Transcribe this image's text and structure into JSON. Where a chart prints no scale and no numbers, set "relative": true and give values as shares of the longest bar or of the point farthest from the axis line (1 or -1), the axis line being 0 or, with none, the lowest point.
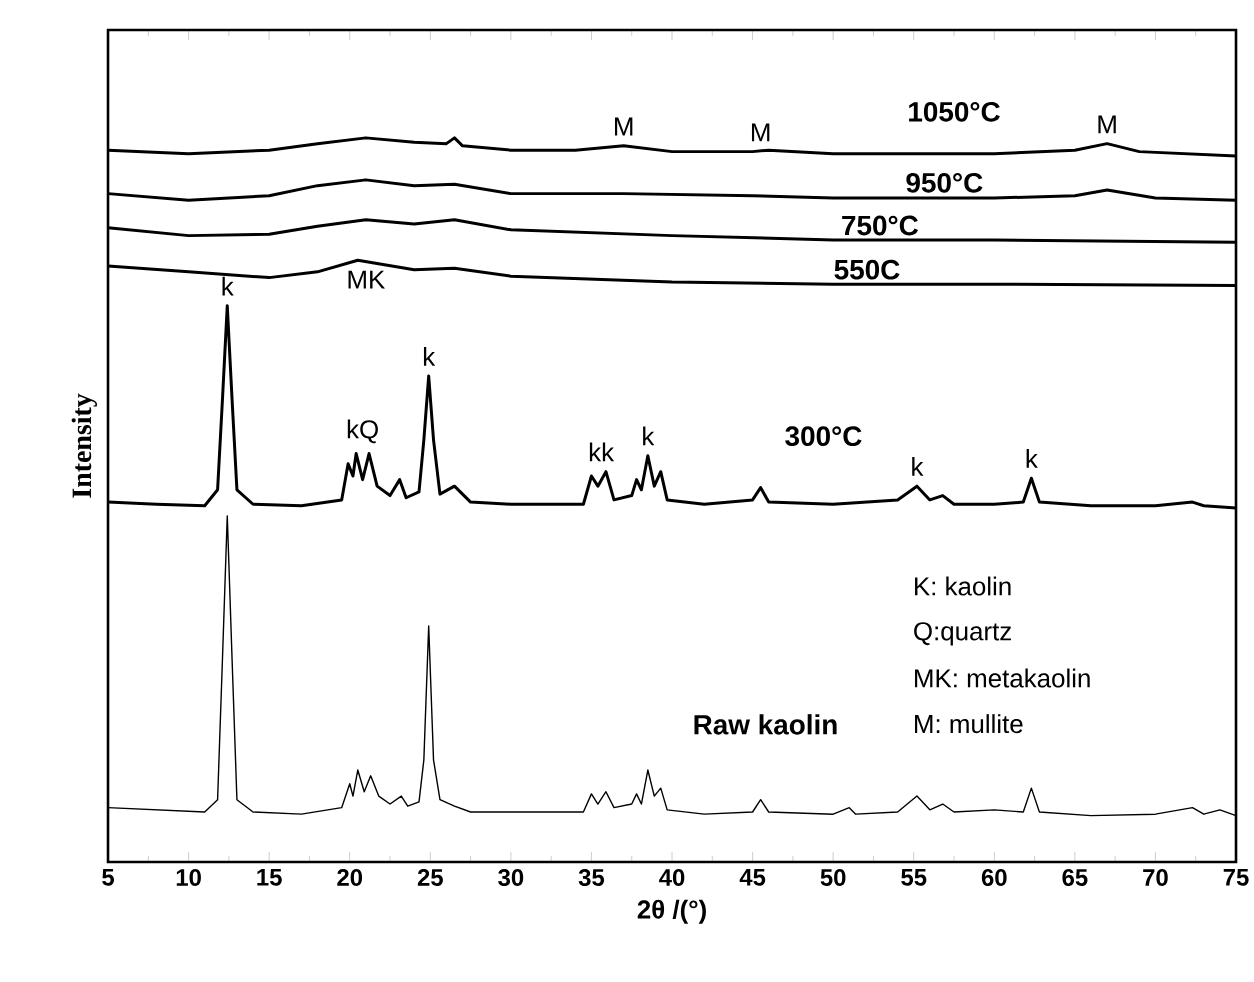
{
  "chart_data": {
    "type": "line",
    "relative": true,
    "xlabel": "2θ /(°)",
    "ylabel": "Intensity",
    "xlim": [
      5,
      75
    ],
    "xticks": [
      5,
      10,
      15,
      20,
      25,
      30,
      35,
      40,
      45,
      50,
      55,
      60,
      65,
      70,
      75
    ],
    "grid": false,
    "marker": "none",
    "line_style": "solid",
    "series": [
      {
        "name": "1050°C",
        "color": "#000000",
        "x": [
          5,
          10,
          15,
          18,
          21,
          24,
          26,
          26.5,
          27,
          30,
          34,
          37,
          40,
          45,
          46,
          50,
          60,
          65,
          67,
          69,
          75
        ],
        "values": [
          0.983,
          0.978,
          0.983,
          0.992,
          1.0,
          0.994,
          0.992,
          1.0,
          0.989,
          0.983,
          0.983,
          0.989,
          0.981,
          0.981,
          0.983,
          0.978,
          0.978,
          0.983,
          0.992,
          0.981,
          0.975
        ]
      },
      {
        "name": "950°C",
        "color": "#000000",
        "x": [
          5,
          10,
          15,
          18,
          21,
          24,
          26.5,
          30,
          37,
          45,
          50,
          60,
          65,
          67,
          70,
          75
        ],
        "values": [
          0.923,
          0.914,
          0.92,
          0.934,
          0.942,
          0.934,
          0.936,
          0.923,
          0.923,
          0.92,
          0.917,
          0.917,
          0.92,
          0.928,
          0.917,
          0.914
        ]
      },
      {
        "name": "750°C",
        "color": "#000000",
        "x": [
          5,
          10,
          15,
          18,
          21,
          24,
          26.5,
          30,
          40,
          50,
          60,
          75
        ],
        "values": [
          0.876,
          0.865,
          0.867,
          0.878,
          0.887,
          0.881,
          0.887,
          0.873,
          0.865,
          0.859,
          0.859,
          0.856
        ]
      },
      {
        "name": "550C",
        "color": "#000000",
        "x": [
          5,
          10,
          15,
          18,
          20.5,
          24,
          26.5,
          30,
          40,
          50,
          60,
          75
        ],
        "values": [
          0.823,
          0.815,
          0.807,
          0.815,
          0.831,
          0.818,
          0.82,
          0.809,
          0.801,
          0.798,
          0.798,
          0.796
        ]
      },
      {
        "name": "300°C",
        "color": "#000000",
        "x": [
          5,
          8,
          11,
          11.8,
          12.1,
          12.4,
          12.7,
          13,
          14,
          17,
          19.5,
          19.9,
          20.2,
          20.4,
          20.8,
          21.2,
          21.7,
          22.5,
          23.1,
          23.5,
          24.3,
          24.6,
          24.9,
          25.2,
          25.6,
          26.5,
          27.5,
          30,
          34.5,
          35,
          35.4,
          35.9,
          36.4,
          37.5,
          37.8,
          38.1,
          38.5,
          38.9,
          39.3,
          39.7,
          42,
          45,
          45.5,
          46,
          50,
          54,
          55.2,
          56,
          56.8,
          57.5,
          60,
          61.8,
          62.3,
          62.8,
          66,
          70,
          72.3,
          73,
          75
        ],
        "values": [
          0.497,
          0.494,
          0.492,
          0.514,
          0.638,
          0.768,
          0.638,
          0.514,
          0.494,
          0.492,
          0.5,
          0.55,
          0.533,
          0.564,
          0.528,
          0.564,
          0.519,
          0.506,
          0.528,
          0.503,
          0.511,
          0.583,
          0.671,
          0.583,
          0.508,
          0.519,
          0.497,
          0.494,
          0.494,
          0.533,
          0.519,
          0.539,
          0.5,
          0.506,
          0.528,
          0.514,
          0.561,
          0.519,
          0.539,
          0.5,
          0.494,
          0.5,
          0.517,
          0.497,
          0.494,
          0.5,
          0.519,
          0.5,
          0.506,
          0.494,
          0.494,
          0.497,
          0.53,
          0.497,
          0.492,
          0.492,
          0.497,
          0.492,
          0.489
        ]
      },
      {
        "name": "Raw kaolin",
        "color": "#000000",
        "x": [
          5,
          8,
          11,
          11.8,
          12.1,
          12.4,
          12.7,
          13,
          14,
          17,
          19.5,
          20,
          20.2,
          20.5,
          20.9,
          21.3,
          21.8,
          22.5,
          23.2,
          23.6,
          24.3,
          24.6,
          24.9,
          25.2,
          25.6,
          26.5,
          27.5,
          30,
          34.5,
          35,
          35.4,
          35.9,
          36.4,
          37.5,
          37.8,
          38.1,
          38.5,
          38.9,
          39.3,
          39.7,
          42,
          45,
          45.5,
          46,
          50,
          51,
          51.4,
          54,
          55.2,
          56,
          56.8,
          57.5,
          60,
          61.8,
          62.3,
          62.8,
          66,
          70,
          72.3,
          73,
          74,
          75
        ],
        "values": [
          0.075,
          0.072,
          0.069,
          0.086,
          0.279,
          0.478,
          0.279,
          0.086,
          0.069,
          0.066,
          0.075,
          0.108,
          0.091,
          0.127,
          0.097,
          0.119,
          0.091,
          0.08,
          0.091,
          0.077,
          0.083,
          0.141,
          0.326,
          0.141,
          0.086,
          0.077,
          0.069,
          0.069,
          0.069,
          0.094,
          0.08,
          0.097,
          0.075,
          0.08,
          0.094,
          0.08,
          0.127,
          0.091,
          0.102,
          0.072,
          0.066,
          0.069,
          0.086,
          0.069,
          0.066,
          0.075,
          0.066,
          0.069,
          0.091,
          0.072,
          0.08,
          0.069,
          0.072,
          0.069,
          0.102,
          0.069,
          0.064,
          0.066,
          0.075,
          0.066,
          0.072,
          0.064
        ]
      }
    ],
    "annotations": [
      {
        "text": "k",
        "x": 12.4,
        "y": 0.768
      },
      {
        "text": "kQ",
        "x": 20.8,
        "y": 0.564
      },
      {
        "text": "k",
        "x": 24.9,
        "y": 0.671
      },
      {
        "text": "kk",
        "x": 35.6,
        "y": 0.539
      },
      {
        "text": "k",
        "x": 38.5,
        "y": 0.561
      },
      {
        "text": "k",
        "x": 55.2,
        "y": 0.519
      },
      {
        "text": "k",
        "x": 62.3,
        "y": 0.53
      },
      {
        "text": "MK",
        "x": 21,
        "y": 0.831
      },
      {
        "text": "M",
        "x": 37,
        "y": 0.989
      },
      {
        "text": "M",
        "x": 45.5,
        "y": 0.981
      },
      {
        "text": "M",
        "x": 67,
        "y": 0.992
      },
      "K: kaolin",
      "Q:quartz",
      "MK: metakaolin",
      "M: mullite"
    ]
  }
}
